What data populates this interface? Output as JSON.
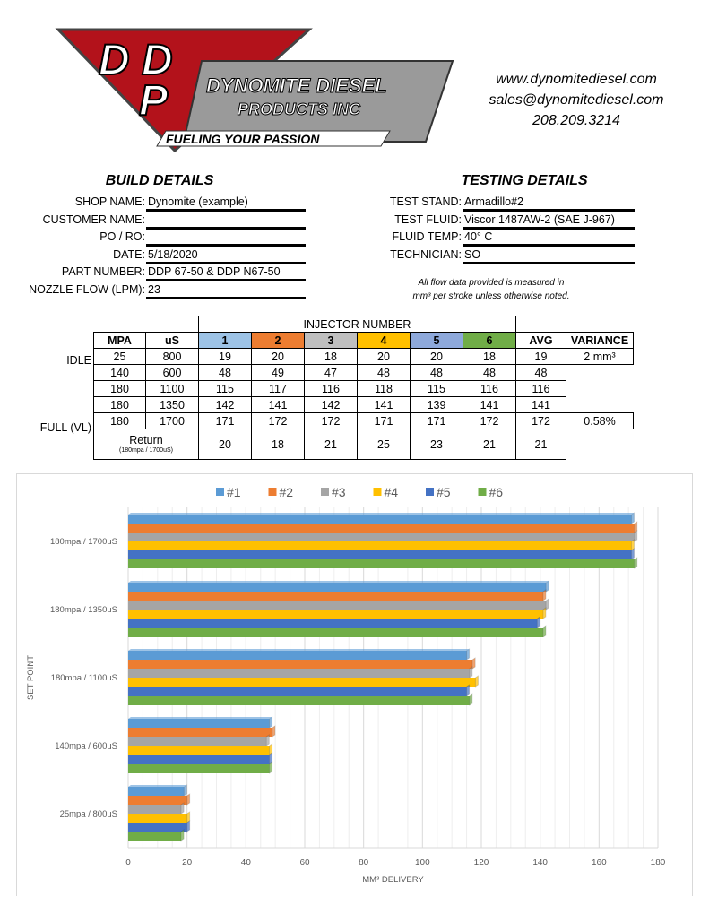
{
  "logo": {
    "letters": "DDP",
    "line1": "DYNOMITE DIESEL",
    "line2": "PRODUCTS INC",
    "tagline": "FUELING YOUR PASSION"
  },
  "contact": {
    "website": "www.dynomitediesel.com",
    "email": "sales@dynomitediesel.com",
    "phone": "208.209.3214"
  },
  "build": {
    "title": "BUILD DETAILS",
    "fields": [
      {
        "label": "SHOP NAME:",
        "value": "Dynomite (example)"
      },
      {
        "label": "CUSTOMER NAME:",
        "value": ""
      },
      {
        "label": "PO / RO:",
        "value": ""
      },
      {
        "label": "DATE:",
        "value": "5/18/2020"
      },
      {
        "label": "PART NUMBER:",
        "value": "DDP 67-50 & DDP N67-50"
      },
      {
        "label": "NOZZLE FLOW (LPM):",
        "value": "23"
      }
    ]
  },
  "testing": {
    "title": "TESTING DETAILS",
    "fields": [
      {
        "label": "TEST STAND:",
        "value": "Armadillo#2"
      },
      {
        "label": "TEST FLUID:",
        "value": " Viscor 1487AW-2 (SAE J-967)"
      },
      {
        "label": "FLUID TEMP:",
        "value": " 40° C"
      },
      {
        "label": "TECHNICIAN:",
        "value": "SO"
      }
    ],
    "note_line1": "All flow data provided is measured in",
    "note_line2": "mm³ per stroke unless otherwise noted."
  },
  "table": {
    "group_header": "INJECTOR NUMBER",
    "headers": [
      "MPA",
      "uS",
      "1",
      "2",
      "3",
      "4",
      "5",
      "6",
      "AVG",
      "VARIANCE"
    ],
    "header_colors": [
      "#9DC3E6",
      "#ED7D31",
      "#BFBFBF",
      "#FFC000",
      "#8EA9DB",
      "#70AD47"
    ],
    "rows": [
      {
        "label": "IDLE",
        "cells": [
          "25",
          "800",
          "19",
          "20",
          "18",
          "20",
          "20",
          "18",
          "19"
        ],
        "variance": "2 mm³"
      },
      {
        "label": "",
        "cells": [
          "140",
          "600",
          "48",
          "49",
          "47",
          "48",
          "48",
          "48",
          "48"
        ]
      },
      {
        "label": "",
        "cells": [
          "180",
          "1100",
          "115",
          "117",
          "116",
          "118",
          "115",
          "116",
          "116"
        ]
      },
      {
        "label": "",
        "cells": [
          "180",
          "1350",
          "142",
          "141",
          "142",
          "141",
          "139",
          "141",
          "141"
        ]
      },
      {
        "label": "FULL (VL)",
        "cells": [
          "180",
          "1700",
          "171",
          "172",
          "172",
          "171",
          "171",
          "172",
          "172"
        ],
        "variance": "0.58%"
      }
    ],
    "return": {
      "label": "Return",
      "sublabel": "(180mpa / 1700uS)",
      "cells": [
        "20",
        "18",
        "21",
        "25",
        "23",
        "21",
        "21"
      ]
    }
  },
  "chart_data": {
    "type": "bar",
    "orientation": "horizontal",
    "categories": [
      "180mpa / 1700uS",
      "180mpa / 1350uS",
      "180mpa / 1100uS",
      "140mpa / 600uS",
      "25mpa / 800uS"
    ],
    "series": [
      {
        "name": "#1",
        "color": "#5B9BD5",
        "values": [
          171,
          142,
          115,
          48,
          19
        ]
      },
      {
        "name": "#2",
        "color": "#ED7D31",
        "values": [
          172,
          141,
          117,
          49,
          20
        ]
      },
      {
        "name": "#3",
        "color": "#A5A5A5",
        "values": [
          172,
          142,
          116,
          47,
          18
        ]
      },
      {
        "name": "#4",
        "color": "#FFC000",
        "values": [
          171,
          141,
          118,
          48,
          20
        ]
      },
      {
        "name": "#5",
        "color": "#4472C4",
        "values": [
          171,
          139,
          115,
          48,
          20
        ]
      },
      {
        "name": "#6",
        "color": "#70AD47",
        "values": [
          172,
          141,
          116,
          48,
          18
        ]
      }
    ],
    "xlabel": "MM³ DELIVERY",
    "ylabel": "SET POINT",
    "xlim": [
      0,
      180
    ],
    "xticks": [
      "0",
      "20",
      "40",
      "60",
      "80",
      "100",
      "120",
      "140",
      "160",
      "180"
    ],
    "grid": true,
    "legend": "top"
  }
}
